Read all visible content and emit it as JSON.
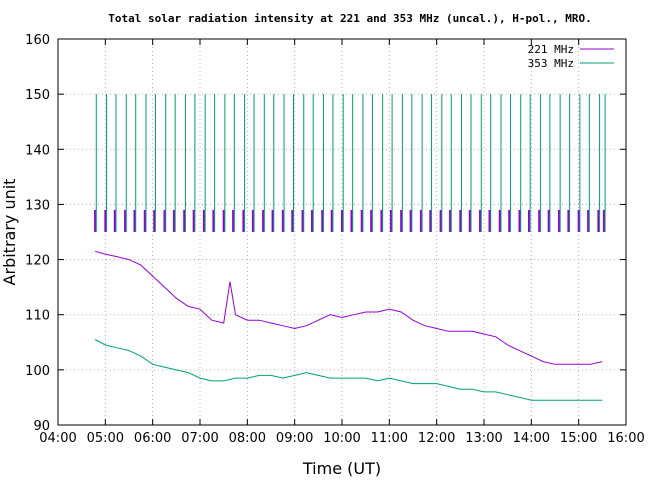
{
  "chart_data": {
    "type": "line",
    "title": "Total solar radiation intensity at 221 and 353 MHz (uncal.), H-pol., MRO.",
    "xlabel": "Time (UT)",
    "ylabel": "Arbitrary unit",
    "xlim": [
      "04:00",
      "16:00"
    ],
    "ylim": [
      90,
      160
    ],
    "xticks": [
      "04:00",
      "05:00",
      "06:00",
      "07:00",
      "08:00",
      "09:00",
      "10:00",
      "11:00",
      "12:00",
      "13:00",
      "14:00",
      "15:00",
      "16:00"
    ],
    "yticks": [
      90,
      100,
      110,
      120,
      130,
      140,
      150,
      160
    ],
    "grid": true,
    "legend_position": "top-right",
    "colors": {
      "221 MHz": "#9400d3",
      "353 MHz": "#009e73"
    },
    "series": [
      {
        "name": "221 MHz",
        "x": [
          "04:47",
          "05:00",
          "05:15",
          "05:30",
          "05:45",
          "06:00",
          "06:15",
          "06:30",
          "06:45",
          "07:00",
          "07:15",
          "07:30",
          "07:38",
          "07:45",
          "08:00",
          "08:15",
          "08:30",
          "08:45",
          "09:00",
          "09:15",
          "09:30",
          "09:45",
          "10:00",
          "10:15",
          "10:30",
          "10:45",
          "11:00",
          "11:15",
          "11:30",
          "11:45",
          "12:00",
          "12:15",
          "12:30",
          "12:45",
          "13:00",
          "13:15",
          "13:30",
          "13:45",
          "14:00",
          "14:15",
          "14:30",
          "14:45",
          "15:00",
          "15:15",
          "15:30"
        ],
        "values": [
          121.5,
          121,
          120.5,
          120,
          119,
          117,
          115,
          113,
          111.5,
          111,
          109,
          108.5,
          116,
          110,
          109,
          109,
          108.5,
          108,
          107.5,
          108,
          109,
          110,
          109.5,
          110,
          110.5,
          110.5,
          111,
          110.5,
          109,
          108,
          107.5,
          107,
          107,
          107,
          106.5,
          106,
          104.5,
          103.5,
          102.5,
          101.5,
          101,
          101,
          101,
          101,
          101.5
        ]
      },
      {
        "name": "353 MHz",
        "x": [
          "04:47",
          "05:00",
          "05:15",
          "05:30",
          "05:45",
          "06:00",
          "06:15",
          "06:30",
          "06:45",
          "07:00",
          "07:15",
          "07:30",
          "07:45",
          "08:00",
          "08:15",
          "08:30",
          "08:45",
          "09:00",
          "09:15",
          "09:30",
          "09:45",
          "10:00",
          "10:15",
          "10:30",
          "10:45",
          "11:00",
          "11:15",
          "11:30",
          "11:45",
          "12:00",
          "12:15",
          "12:30",
          "12:45",
          "13:00",
          "13:15",
          "13:30",
          "13:45",
          "14:00",
          "14:15",
          "14:30",
          "14:45",
          "15:00",
          "15:15",
          "15:30"
        ],
        "values": [
          105.5,
          104.5,
          104,
          103.5,
          102.5,
          101,
          100.5,
          100,
          99.5,
          98.5,
          98,
          98,
          98.5,
          98.5,
          99,
          99,
          98.5,
          99,
          99.5,
          99,
          98.5,
          98.5,
          98.5,
          98.5,
          98,
          98.5,
          98,
          97.5,
          97.5,
          97.5,
          97,
          96.5,
          96.5,
          96,
          96,
          95.5,
          95,
          94.5,
          94.5,
          94.5,
          94.5,
          94.5,
          94.5,
          94.5
        ]
      }
    ],
    "calibration_spikes": {
      "times": [
        "04:47",
        "05:00",
        "05:12",
        "05:25",
        "05:37",
        "05:50",
        "06:02",
        "06:15",
        "06:27",
        "06:40",
        "06:52",
        "07:05",
        "07:17",
        "07:30",
        "07:42",
        "07:55",
        "08:07",
        "08:20",
        "08:32",
        "08:45",
        "08:57",
        "09:10",
        "09:22",
        "09:35",
        "09:47",
        "10:00",
        "10:12",
        "10:25",
        "10:37",
        "10:50",
        "11:02",
        "11:15",
        "11:27",
        "11:40",
        "11:52",
        "12:05",
        "12:17",
        "12:30",
        "12:42",
        "12:55",
        "13:07",
        "13:20",
        "13:32",
        "13:45",
        "13:57",
        "14:10",
        "14:22",
        "14:35",
        "14:47",
        "15:00",
        "15:12",
        "15:25",
        "15:32"
      ],
      "purple_top": 129,
      "purple_mid": 125,
      "green_top": 150
    }
  }
}
